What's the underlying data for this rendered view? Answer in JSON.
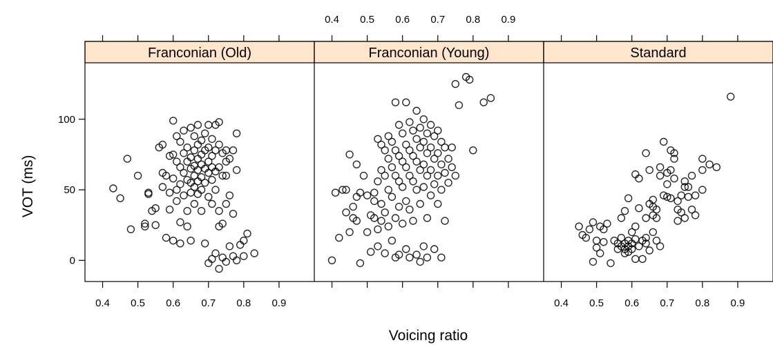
{
  "chart_data": {
    "type": "scatter",
    "xlabel": "Voicing ratio",
    "ylabel": "VOT (ms)",
    "xlim": [
      0.35,
      1.0
    ],
    "ylim": [
      -15,
      140
    ],
    "x_ticks": [
      0.4,
      0.5,
      0.6,
      0.7,
      0.8,
      0.9
    ],
    "x_tick_labels": [
      "0.4",
      "0.5",
      "0.6",
      "0.7",
      "0.8",
      "0.9"
    ],
    "y_ticks": [
      0,
      50,
      100
    ],
    "y_tick_labels": [
      "0",
      "50",
      "100"
    ],
    "strip_color": "#ffe5cc",
    "point_color": "#000000",
    "panels": [
      {
        "name": "Franconian (Old)",
        "points": [
          [
            0.43,
            51
          ],
          [
            0.45,
            44
          ],
          [
            0.47,
            72
          ],
          [
            0.48,
            22
          ],
          [
            0.5,
            60
          ],
          [
            0.52,
            24
          ],
          [
            0.52,
            26
          ],
          [
            0.53,
            48
          ],
          [
            0.53,
            47
          ],
          [
            0.54,
            35
          ],
          [
            0.55,
            37
          ],
          [
            0.55,
            25
          ],
          [
            0.56,
            80
          ],
          [
            0.57,
            82
          ],
          [
            0.57,
            62
          ],
          [
            0.57,
            52
          ],
          [
            0.58,
            16
          ],
          [
            0.58,
            60
          ],
          [
            0.59,
            74
          ],
          [
            0.59,
            48
          ],
          [
            0.59,
            36
          ],
          [
            0.6,
            99
          ],
          [
            0.6,
            75
          ],
          [
            0.6,
            58
          ],
          [
            0.6,
            14
          ],
          [
            0.61,
            88
          ],
          [
            0.61,
            70
          ],
          [
            0.61,
            50
          ],
          [
            0.61,
            42
          ],
          [
            0.62,
            84
          ],
          [
            0.62,
            66
          ],
          [
            0.62,
            54
          ],
          [
            0.62,
            27
          ],
          [
            0.62,
            12
          ],
          [
            0.63,
            92
          ],
          [
            0.63,
            76
          ],
          [
            0.63,
            62
          ],
          [
            0.63,
            46
          ],
          [
            0.64,
            80
          ],
          [
            0.64,
            70
          ],
          [
            0.64,
            57
          ],
          [
            0.64,
            35
          ],
          [
            0.64,
            24
          ],
          [
            0.65,
            94
          ],
          [
            0.65,
            73
          ],
          [
            0.65,
            65
          ],
          [
            0.65,
            55
          ],
          [
            0.65,
            48
          ],
          [
            0.65,
            14
          ],
          [
            0.66,
            88
          ],
          [
            0.66,
            78
          ],
          [
            0.66,
            67
          ],
          [
            0.66,
            60
          ],
          [
            0.66,
            52
          ],
          [
            0.66,
            40
          ],
          [
            0.67,
            96
          ],
          [
            0.67,
            82
          ],
          [
            0.67,
            72
          ],
          [
            0.67,
            64
          ],
          [
            0.67,
            56
          ],
          [
            0.67,
            47
          ],
          [
            0.68,
            85
          ],
          [
            0.68,
            75
          ],
          [
            0.68,
            68
          ],
          [
            0.68,
            59
          ],
          [
            0.68,
            50
          ],
          [
            0.68,
            35
          ],
          [
            0.69,
            90
          ],
          [
            0.69,
            78
          ],
          [
            0.69,
            65
          ],
          [
            0.69,
            55
          ],
          [
            0.69,
            12
          ],
          [
            0.7,
            96
          ],
          [
            0.7,
            80
          ],
          [
            0.7,
            70
          ],
          [
            0.7,
            62
          ],
          [
            0.7,
            45
          ],
          [
            0.7,
            -2
          ],
          [
            0.71,
            86
          ],
          [
            0.71,
            74
          ],
          [
            0.71,
            66
          ],
          [
            0.71,
            57
          ],
          [
            0.71,
            40
          ],
          [
            0.71,
            1
          ],
          [
            0.72,
            96
          ],
          [
            0.72,
            78
          ],
          [
            0.72,
            63
          ],
          [
            0.72,
            50
          ],
          [
            0.72,
            5
          ],
          [
            0.73,
            98
          ],
          [
            0.73,
            82
          ],
          [
            0.73,
            66
          ],
          [
            0.73,
            35
          ],
          [
            0.73,
            24
          ],
          [
            0.73,
            -6
          ],
          [
            0.74,
            76
          ],
          [
            0.74,
            60
          ],
          [
            0.74,
            26
          ],
          [
            0.74,
            2
          ],
          [
            0.75,
            78
          ],
          [
            0.75,
            70
          ],
          [
            0.75,
            60
          ],
          [
            0.75,
            40
          ],
          [
            0.75,
            -1
          ],
          [
            0.76,
            72
          ],
          [
            0.76,
            46
          ],
          [
            0.76,
            10
          ],
          [
            0.77,
            78
          ],
          [
            0.77,
            33
          ],
          [
            0.77,
            3
          ],
          [
            0.78,
            90
          ],
          [
            0.78,
            64
          ],
          [
            0.78,
            0
          ],
          [
            0.79,
            11
          ],
          [
            0.8,
            14
          ],
          [
            0.8,
            3
          ],
          [
            0.81,
            19
          ],
          [
            0.83,
            5
          ]
        ]
      },
      {
        "name": "Franconian (Young)",
        "points": [
          [
            0.4,
            0
          ],
          [
            0.41,
            48
          ],
          [
            0.42,
            16
          ],
          [
            0.43,
            50
          ],
          [
            0.44,
            50
          ],
          [
            0.44,
            34
          ],
          [
            0.45,
            75
          ],
          [
            0.45,
            20
          ],
          [
            0.46,
            38
          ],
          [
            0.46,
            30
          ],
          [
            0.47,
            68
          ],
          [
            0.47,
            45
          ],
          [
            0.47,
            28
          ],
          [
            0.48,
            48
          ],
          [
            0.48,
            -2
          ],
          [
            0.49,
            60
          ],
          [
            0.5,
            46
          ],
          [
            0.5,
            20
          ],
          [
            0.51,
            32
          ],
          [
            0.51,
            6
          ],
          [
            0.52,
            48
          ],
          [
            0.52,
            42
          ],
          [
            0.52,
            30
          ],
          [
            0.53,
            86
          ],
          [
            0.53,
            56
          ],
          [
            0.53,
            22
          ],
          [
            0.53,
            10
          ],
          [
            0.54,
            82
          ],
          [
            0.54,
            64
          ],
          [
            0.54,
            40
          ],
          [
            0.54,
            28
          ],
          [
            0.55,
            78
          ],
          [
            0.55,
            60
          ],
          [
            0.55,
            34
          ],
          [
            0.55,
            5
          ],
          [
            0.56,
            88
          ],
          [
            0.56,
            72
          ],
          [
            0.56,
            50
          ],
          [
            0.56,
            24
          ],
          [
            0.57,
            84
          ],
          [
            0.57,
            66
          ],
          [
            0.57,
            45
          ],
          [
            0.57,
            14
          ],
          [
            0.58,
            112
          ],
          [
            0.58,
            78
          ],
          [
            0.58,
            60
          ],
          [
            0.58,
            30
          ],
          [
            0.58,
            2
          ],
          [
            0.59,
            96
          ],
          [
            0.59,
            74
          ],
          [
            0.59,
            56
          ],
          [
            0.59,
            38
          ],
          [
            0.59,
            4
          ],
          [
            0.6,
            90
          ],
          [
            0.6,
            70
          ],
          [
            0.6,
            52
          ],
          [
            0.6,
            26
          ],
          [
            0.61,
            112
          ],
          [
            0.61,
            82
          ],
          [
            0.61,
            66
          ],
          [
            0.61,
            42
          ],
          [
            0.61,
            8
          ],
          [
            0.62,
            98
          ],
          [
            0.62,
            78
          ],
          [
            0.62,
            60
          ],
          [
            0.62,
            36
          ],
          [
            0.62,
            2
          ],
          [
            0.63,
            92
          ],
          [
            0.63,
            74
          ],
          [
            0.63,
            56
          ],
          [
            0.63,
            28
          ],
          [
            0.64,
            106
          ],
          [
            0.64,
            86
          ],
          [
            0.64,
            70
          ],
          [
            0.64,
            50
          ],
          [
            0.64,
            4
          ],
          [
            0.65,
            94
          ],
          [
            0.65,
            80
          ],
          [
            0.65,
            64
          ],
          [
            0.65,
            40
          ],
          [
            0.65,
            -1
          ],
          [
            0.66,
            100
          ],
          [
            0.66,
            84
          ],
          [
            0.66,
            68
          ],
          [
            0.66,
            52
          ],
          [
            0.66,
            10
          ],
          [
            0.67,
            90
          ],
          [
            0.67,
            76
          ],
          [
            0.67,
            60
          ],
          [
            0.67,
            30
          ],
          [
            0.67,
            2
          ],
          [
            0.68,
            96
          ],
          [
            0.68,
            80
          ],
          [
            0.68,
            64
          ],
          [
            0.68,
            46
          ],
          [
            0.69,
            88
          ],
          [
            0.69,
            72
          ],
          [
            0.69,
            54
          ],
          [
            0.69,
            8
          ],
          [
            0.7,
            92
          ],
          [
            0.7,
            76
          ],
          [
            0.7,
            60
          ],
          [
            0.7,
            40
          ],
          [
            0.71,
            84
          ],
          [
            0.71,
            68
          ],
          [
            0.71,
            50
          ],
          [
            0.71,
            2
          ],
          [
            0.72,
            80
          ],
          [
            0.72,
            62
          ],
          [
            0.72,
            28
          ],
          [
            0.73,
            72
          ],
          [
            0.73,
            55
          ],
          [
            0.74,
            80
          ],
          [
            0.74,
            66
          ],
          [
            0.75,
            125
          ],
          [
            0.75,
            60
          ],
          [
            0.76,
            110
          ],
          [
            0.78,
            130
          ],
          [
            0.79,
            128
          ],
          [
            0.8,
            78
          ],
          [
            0.83,
            112
          ],
          [
            0.85,
            115
          ]
        ]
      },
      {
        "name": "Standard",
        "points": [
          [
            0.45,
            24
          ],
          [
            0.46,
            18
          ],
          [
            0.47,
            16
          ],
          [
            0.48,
            22
          ],
          [
            0.49,
            27
          ],
          [
            0.49,
            -1
          ],
          [
            0.5,
            14
          ],
          [
            0.5,
            9
          ],
          [
            0.51,
            24
          ],
          [
            0.51,
            5
          ],
          [
            0.52,
            22
          ],
          [
            0.52,
            13
          ],
          [
            0.53,
            26
          ],
          [
            0.54,
            -2
          ],
          [
            0.55,
            14
          ],
          [
            0.56,
            12
          ],
          [
            0.56,
            8
          ],
          [
            0.57,
            30
          ],
          [
            0.57,
            16
          ],
          [
            0.57,
            10
          ],
          [
            0.58,
            35
          ],
          [
            0.58,
            12
          ],
          [
            0.58,
            8
          ],
          [
            0.58,
            5
          ],
          [
            0.59,
            44
          ],
          [
            0.59,
            14
          ],
          [
            0.59,
            10
          ],
          [
            0.59,
            6
          ],
          [
            0.6,
            20
          ],
          [
            0.6,
            12
          ],
          [
            0.6,
            8
          ],
          [
            0.61,
            61
          ],
          [
            0.61,
            24
          ],
          [
            0.61,
            15
          ],
          [
            0.61,
            1
          ],
          [
            0.62,
            58
          ],
          [
            0.62,
            37
          ],
          [
            0.62,
            10
          ],
          [
            0.63,
            14
          ],
          [
            0.63,
            1
          ],
          [
            0.64,
            76
          ],
          [
            0.64,
            30
          ],
          [
            0.64,
            16
          ],
          [
            0.64,
            12
          ],
          [
            0.65,
            64
          ],
          [
            0.65,
            40
          ],
          [
            0.65,
            7
          ],
          [
            0.66,
            43
          ],
          [
            0.66,
            38
          ],
          [
            0.66,
            32
          ],
          [
            0.66,
            20
          ],
          [
            0.67,
            36
          ],
          [
            0.67,
            30
          ],
          [
            0.67,
            14
          ],
          [
            0.68,
            66
          ],
          [
            0.68,
            60
          ],
          [
            0.68,
            10
          ],
          [
            0.69,
            84
          ],
          [
            0.69,
            46
          ],
          [
            0.7,
            62
          ],
          [
            0.7,
            54
          ],
          [
            0.7,
            45
          ],
          [
            0.71,
            78
          ],
          [
            0.71,
            64
          ],
          [
            0.71,
            44
          ],
          [
            0.72,
            76
          ],
          [
            0.72,
            72
          ],
          [
            0.72,
            58
          ],
          [
            0.73,
            42
          ],
          [
            0.73,
            36
          ],
          [
            0.73,
            28
          ],
          [
            0.74,
            46
          ],
          [
            0.74,
            34
          ],
          [
            0.75,
            56
          ],
          [
            0.75,
            52
          ],
          [
            0.75,
            30
          ],
          [
            0.76,
            52
          ],
          [
            0.76,
            45
          ],
          [
            0.77,
            60
          ],
          [
            0.77,
            36
          ],
          [
            0.78,
            46
          ],
          [
            0.78,
            32
          ],
          [
            0.8,
            72
          ],
          [
            0.8,
            64
          ],
          [
            0.8,
            50
          ],
          [
            0.82,
            68
          ],
          [
            0.84,
            66
          ],
          [
            0.88,
            116
          ]
        ]
      }
    ]
  }
}
